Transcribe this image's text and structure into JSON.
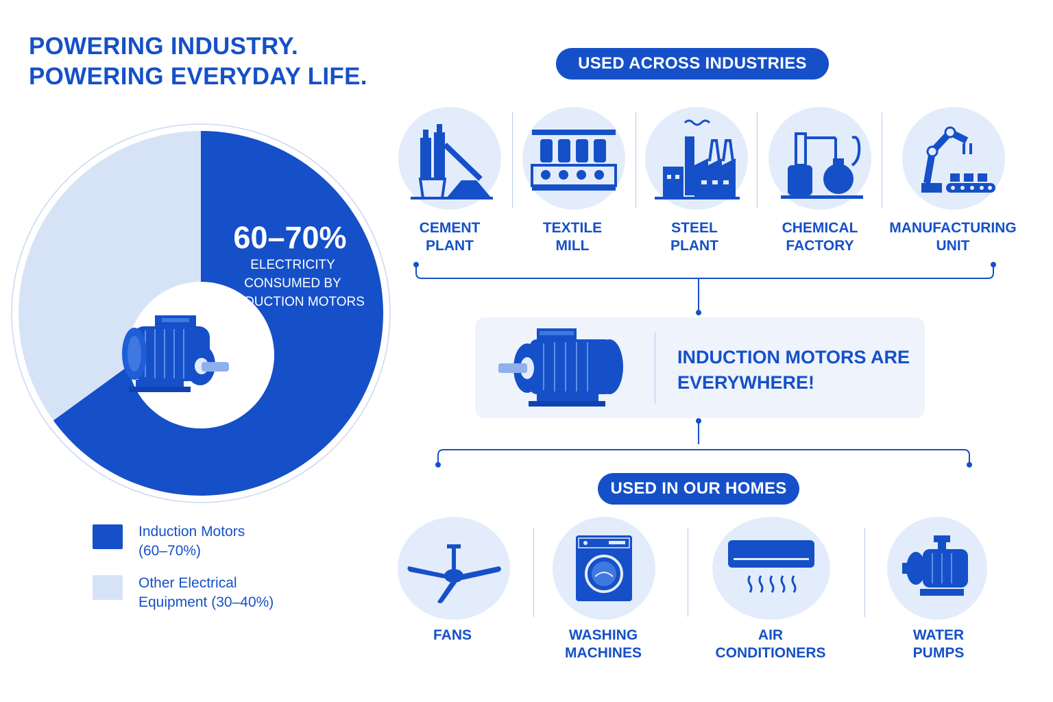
{
  "title": {
    "line1": "POWERING INDUSTRY.",
    "line2": "POWERING EVERYDAY LIFE."
  },
  "pie": {
    "percent": "60–70%",
    "caption": [
      "ELECTRICITY",
      "CONSUMED BY",
      "INDUCTION MOTORS"
    ],
    "share_induction": 0.65,
    "colors": {
      "induction": "#1550c8",
      "other": "#d6e3f7"
    }
  },
  "legend": [
    {
      "line1": "Induction Motors",
      "line2": "(60–70%)",
      "color": "#1550c8"
    },
    {
      "line1": "Other Electrical",
      "line2": "Equipment (30–40%)",
      "color": "#d6e3f7"
    }
  ],
  "industries": {
    "heading": "USED ACROSS INDUSTRIES",
    "items": [
      {
        "icon": "cement-plant-icon",
        "line1": "CEMENT",
        "line2": "PLANT"
      },
      {
        "icon": "textile-mill-icon",
        "line1": "TEXTILE",
        "line2": "MILL"
      },
      {
        "icon": "steel-plant-icon",
        "line1": "STEEL",
        "line2": "PLANT"
      },
      {
        "icon": "chemical-factory-icon",
        "line1": "CHEMICAL",
        "line2": "FACTORY"
      },
      {
        "icon": "robot-arm-icon",
        "line1": "MANUFACTURING",
        "line2": "UNIT"
      }
    ]
  },
  "center": {
    "line1": "INDUCTION MOTORS ARE",
    "line2": "EVERYWHERE!"
  },
  "homes": {
    "heading": "USED IN OUR HOMES",
    "items": [
      {
        "icon": "ceiling-fan-icon",
        "line1": "FANS",
        "line2": ""
      },
      {
        "icon": "washing-machine-icon",
        "line1": "WASHING",
        "line2": "MACHINES"
      },
      {
        "icon": "air-conditioner-icon",
        "line1": "AIR",
        "line2": "CONDITIONERS"
      },
      {
        "icon": "water-pump-icon",
        "line1": "WATER",
        "line2": "PUMPS"
      }
    ]
  }
}
